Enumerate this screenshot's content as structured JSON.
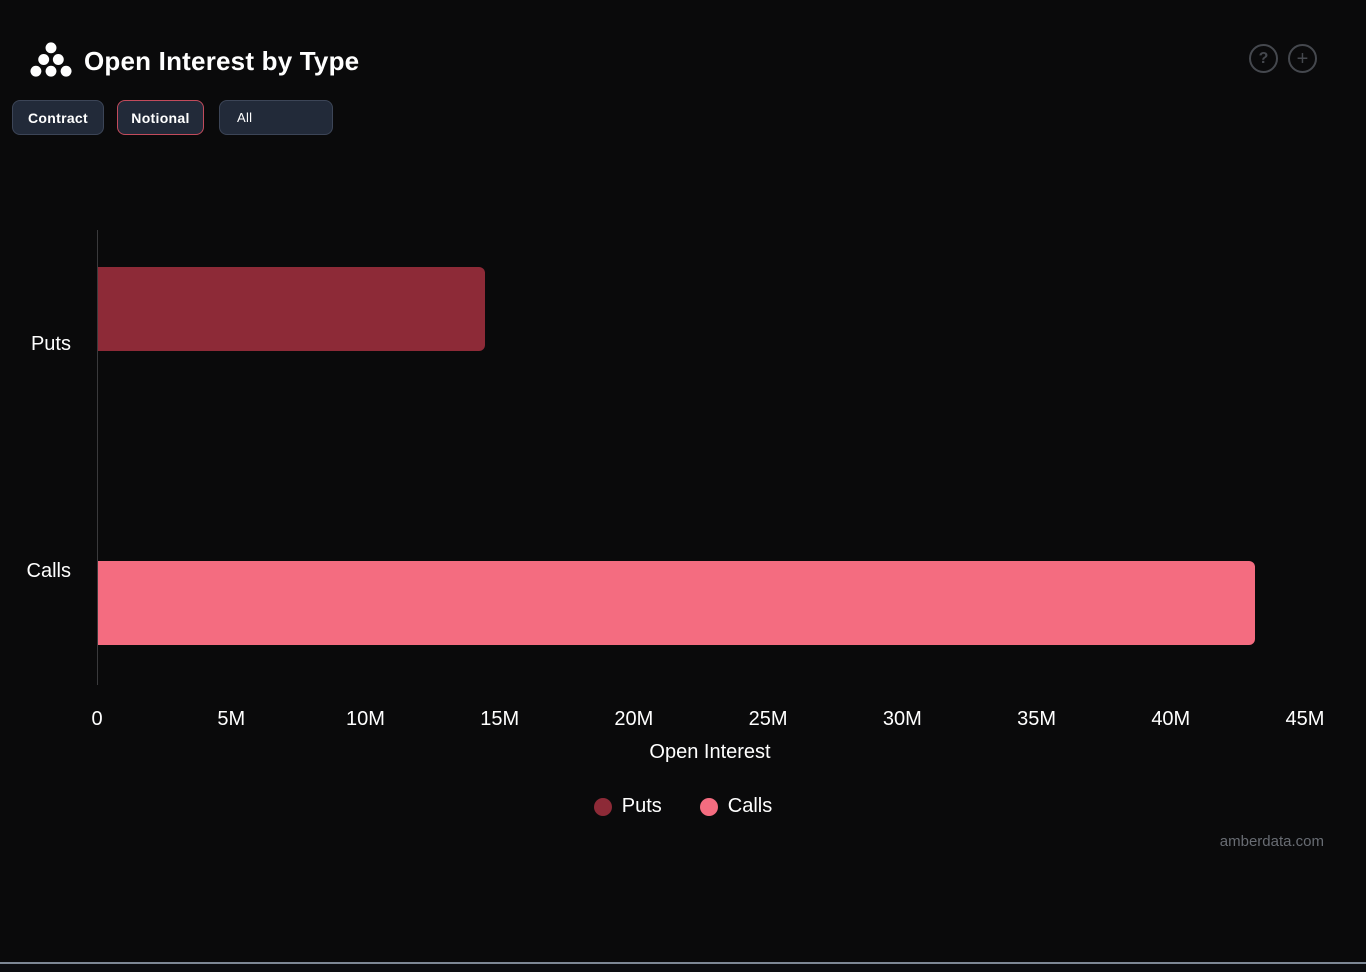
{
  "header": {
    "title": "Open Interest by Type",
    "help_glyph": "?",
    "add_glyph": "+"
  },
  "toolbar": {
    "contract_label": "Contract",
    "notional_label": "Notional",
    "selected_button": "Notional",
    "selected_border_color": "#c24b5c",
    "filter_dropdown_value": "All"
  },
  "chart_data": {
    "type": "bar",
    "orientation": "horizontal",
    "title": "Open Interest by Type",
    "categories": [
      "Puts",
      "Calls"
    ],
    "values": [
      14400000,
      43100000
    ],
    "colors": [
      "#8d2a37",
      "#f46c80"
    ],
    "xlabel": "Open Interest",
    "xlim": [
      0,
      45000000
    ],
    "x_ticks": [
      {
        "value": 0,
        "label": "0"
      },
      {
        "value": 5000000,
        "label": "5M"
      },
      {
        "value": 10000000,
        "label": "10M"
      },
      {
        "value": 15000000,
        "label": "15M"
      },
      {
        "value": 20000000,
        "label": "20M"
      },
      {
        "value": 25000000,
        "label": "25M"
      },
      {
        "value": 30000000,
        "label": "30M"
      },
      {
        "value": 35000000,
        "label": "35M"
      },
      {
        "value": 40000000,
        "label": "40M"
      },
      {
        "value": 45000000,
        "label": "45M"
      }
    ],
    "grid": false,
    "legend": {
      "position": "bottom",
      "items": [
        {
          "label": "Puts",
          "color": "#8d2a37"
        },
        {
          "label": "Calls",
          "color": "#f46c80"
        }
      ]
    },
    "background": "#0a0a0b"
  },
  "footer": {
    "watermark": "amberdata.com"
  }
}
